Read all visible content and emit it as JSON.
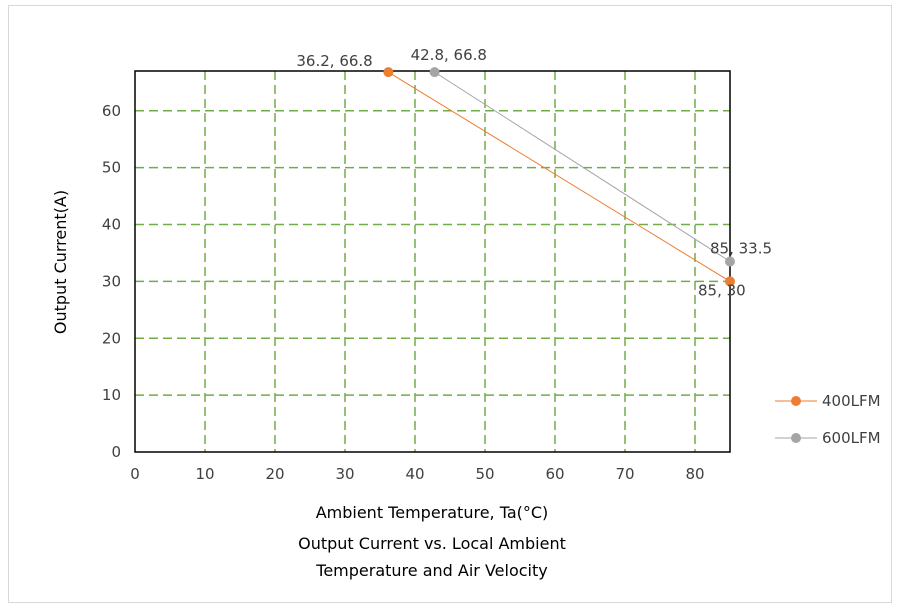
{
  "chart_data": {
    "type": "scatter",
    "title": "",
    "caption_lines": [
      "Output Current vs. Local Ambient",
      "Temperature and Air Velocity"
    ],
    "xlabel": "Ambient Temperature, Ta(°C)",
    "ylabel": "Output Current(A)",
    "xlim": [
      0,
      85
    ],
    "ylim": [
      0,
      67
    ],
    "xticks": [
      0,
      10,
      20,
      30,
      40,
      50,
      60,
      70,
      80
    ],
    "yticks": [
      0,
      10,
      20,
      30,
      40,
      50,
      60
    ],
    "grid": true,
    "grid_color": "#70ad47",
    "legend_position": "right",
    "series": [
      {
        "name": "400LFM",
        "color": "#ed7d31",
        "points": [
          {
            "x": 36.2,
            "y": 66.8,
            "label": "36.2, 66.8"
          },
          {
            "x": 85,
            "y": 30,
            "label": "85, 30"
          }
        ]
      },
      {
        "name": "600LFM",
        "color": "#a5a5a5",
        "points": [
          {
            "x": 42.8,
            "y": 66.8,
            "label": "42.8, 66.8"
          },
          {
            "x": 85,
            "y": 33.5,
            "label": "85, 33.5"
          }
        ]
      }
    ]
  }
}
